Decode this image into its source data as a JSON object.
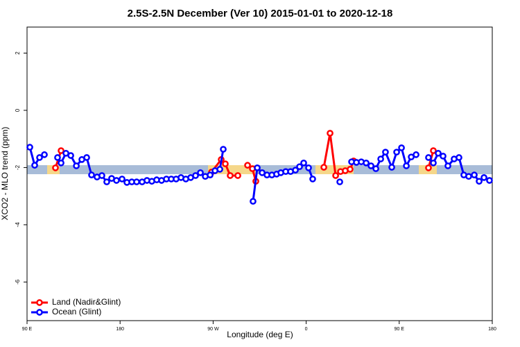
{
  "chart_data": {
    "type": "line",
    "title": "2.5S-2.5N December (Ver 10)   2015-01-01 to 2020-12-18",
    "x_label": "Longitude (deg E)",
    "y_label": "XCO2 - MLO trend (ppm)",
    "xlim": [
      90,
      540
    ],
    "ylim": [
      -7.35,
      2.91
    ],
    "xticks": [
      {
        "value": 90,
        "label": "90 E"
      },
      180,
      {
        "value": 270,
        "label": "90 W"
      },
      {
        "value": 360,
        "label": "0"
      },
      {
        "value": 450,
        "label": "90 E"
      },
      {
        "value": 540,
        "label": "180"
      }
    ],
    "yticks": [
      -6,
      -4,
      -2,
      0,
      2
    ],
    "legend": "bottom-left",
    "series": [
      {
        "name": "Land (Nadir&Glint)",
        "color": "#ff0000",
        "x": [
          117.5,
          122.9,
          null,
          268.4,
          277.8,
          281.8,
          286.5,
          293.9,
          null,
          303.3,
          308.0,
          311.3,
          null,
          377.1,
          383.1,
          388.5,
          393.2,
          397.8,
          402.5,
          405.9,
          null,
          478.3,
          483.0
        ],
        "values": [
          -2.01,
          -1.41,
          null,
          -2.16,
          -1.72,
          -1.87,
          -2.28,
          -2.28,
          null,
          -1.92,
          -2.04,
          -2.48,
          null,
          -1.99,
          -0.8,
          -2.28,
          -2.14,
          -2.11,
          -2.06,
          -1.77,
          null,
          -2.01,
          -1.41
        ]
      },
      {
        "name": "Ocean (Glint)",
        "color": "#0000ff",
        "x": [
          92.7,
          97.4,
          102.1,
          106.8,
          null,
          119.5,
          122.9,
          127.6,
          132.3,
          137.7,
          143.0,
          147.7,
          152.4,
          157.7,
          162.4,
          167.1,
          171.8,
          176.5,
          181.9,
          186.6,
          191.3,
          196.0,
          201.3,
          206.0,
          210.7,
          215.4,
          220.1,
          224.8,
          229.5,
          234.2,
          238.9,
          243.6,
          248.3,
          253.0,
          257.7,
          262.4,
          267.1,
          271.8,
          276.5,
          279.8,
          null,
          308.6,
          312.7,
          317.4,
          322.1,
          326.8,
          331.4,
          335.5,
          340.2,
          344.9,
          349.6,
          353.6,
          357.6,
          362.3,
          366.3,
          null,
          392.5,
          null,
          403.9,
          408.6,
          413.3,
          418.0,
          422.7,
          427.4,
          432.1,
          436.7,
          442.8,
          447.5,
          452.2,
          456.9,
          461.6,
          466.3,
          null,
          478.3,
          483.0,
          487.7,
          492.4,
          497.1,
          503.1,
          507.8,
          512.5,
          517.2,
          522.6,
          527.3,
          532.0,
          537.3
        ],
        "values": [
          -1.29,
          -1.92,
          -1.65,
          -1.55,
          null,
          -1.65,
          -1.84,
          -1.5,
          -1.58,
          -1.94,
          -1.72,
          -1.65,
          -2.26,
          -2.33,
          -2.28,
          -2.5,
          -2.38,
          -2.45,
          -2.4,
          -2.52,
          -2.5,
          -2.5,
          -2.5,
          -2.45,
          -2.48,
          -2.43,
          -2.45,
          -2.4,
          -2.4,
          -2.4,
          -2.35,
          -2.4,
          -2.35,
          -2.28,
          -2.18,
          -2.31,
          -2.26,
          -2.11,
          -2.06,
          -1.36,
          null,
          -3.18,
          -2.01,
          -2.18,
          -2.26,
          -2.26,
          -2.23,
          -2.18,
          -2.14,
          -2.14,
          -2.09,
          -1.97,
          -1.84,
          -2.01,
          -2.4,
          null,
          -2.5,
          null,
          -1.8,
          -1.82,
          -1.8,
          -1.84,
          -1.94,
          -2.04,
          -1.7,
          -1.46,
          -1.99,
          -1.46,
          -1.31,
          -1.94,
          -1.63,
          -1.55,
          null,
          -1.65,
          -1.84,
          -1.5,
          -1.6,
          -1.94,
          -1.7,
          -1.65,
          -2.26,
          -2.31,
          -2.26,
          -2.48,
          -2.35,
          -2.45
        ]
      }
    ]
  }
}
